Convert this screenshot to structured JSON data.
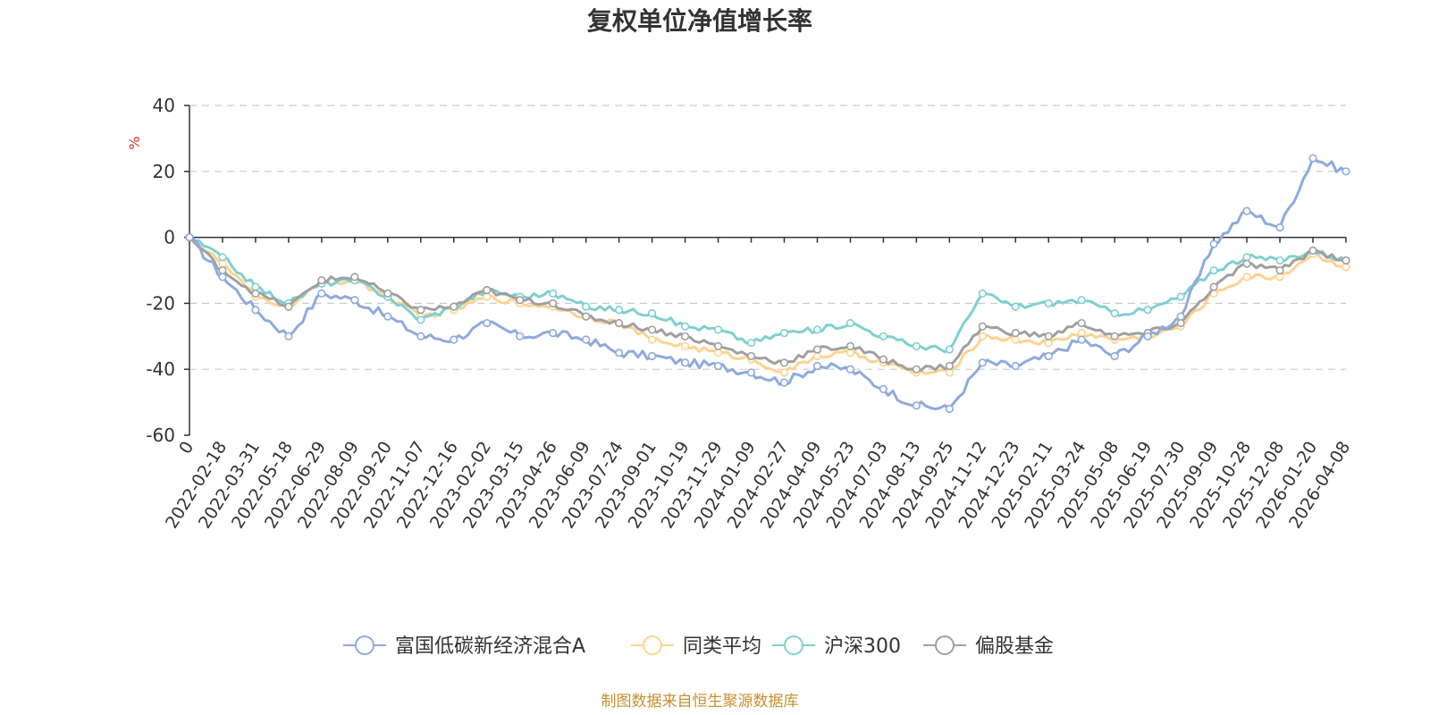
{
  "chart_data": {
    "type": "line",
    "title": "复权单位净值增长率",
    "ylabel": "%",
    "ylim": [
      -60,
      40
    ],
    "yticks": [
      40,
      20,
      0,
      -20,
      -40,
      -60
    ],
    "grid": true,
    "legend_position": "bottom",
    "categories": [
      "0",
      "2022-02-18",
      "2022-03-31",
      "2022-05-18",
      "2022-06-29",
      "2022-08-09",
      "2022-09-20",
      "2022-11-07",
      "2022-12-16",
      "2023-02-02",
      "2023-03-15",
      "2023-04-26",
      "2023-06-09",
      "2023-07-24",
      "2023-09-01",
      "2023-10-19",
      "2023-11-29",
      "2024-01-09",
      "2024-02-27",
      "2024-04-09",
      "2024-05-23",
      "2024-07-03",
      "2024-08-13",
      "2024-09-25",
      "2024-11-12",
      "2024-12-23",
      "2025-02-11",
      "2025-03-24",
      "2025-05-08",
      "2025-06-19",
      "2025-07-30",
      "2025-09-09",
      "2025-10-28",
      "2025-12-08",
      "2026-01-20",
      "2026-04-08"
    ],
    "series": [
      {
        "name": "富国低碳新经济混合A",
        "color": "#8faadc",
        "values": [
          0,
          -12,
          -22,
          -30,
          -17,
          -19,
          -24,
          -30,
          -31,
          -26,
          -30,
          -29,
          -31,
          -35,
          -36,
          -38,
          -39,
          -41,
          -44,
          -39,
          -40,
          -46,
          -51,
          -52,
          -38,
          -39,
          -36,
          -31,
          -36,
          -30,
          -24,
          -2,
          8,
          3,
          24,
          20
        ]
      },
      {
        "name": "同类平均",
        "color": "#ffd28f",
        "values": [
          0,
          -8,
          -18,
          -21,
          -14,
          -13,
          -18,
          -24,
          -22,
          -18,
          -20,
          -21,
          -24,
          -26,
          -31,
          -33,
          -35,
          -37,
          -41,
          -36,
          -35,
          -38,
          -41,
          -41,
          -30,
          -31,
          -32,
          -29,
          -31,
          -30,
          -27,
          -17,
          -12,
          -12,
          -5,
          -9
        ]
      },
      {
        "name": "沪深300",
        "color": "#7fd0d0",
        "values": [
          0,
          -6,
          -15,
          -20,
          -14,
          -13,
          -18,
          -25,
          -21,
          -16,
          -18,
          -17,
          -21,
          -22,
          -23,
          -27,
          -28,
          -32,
          -29,
          -28,
          -26,
          -30,
          -33,
          -34,
          -17,
          -21,
          -20,
          -19,
          -23,
          -22,
          -18,
          -10,
          -6,
          -7,
          -4,
          -7
        ]
      },
      {
        "name": "偏股基金",
        "color": "#a0a0a0",
        "values": [
          0,
          -10,
          -17,
          -21,
          -13,
          -12,
          -17,
          -22,
          -21,
          -16,
          -19,
          -20,
          -24,
          -26,
          -28,
          -30,
          -33,
          -36,
          -38,
          -34,
          -33,
          -37,
          -40,
          -39,
          -27,
          -29,
          -30,
          -26,
          -30,
          -29,
          -26,
          -15,
          -8,
          -10,
          -4,
          -7
        ]
      }
    ]
  },
  "source": "制图数据来自恒生聚源数据库",
  "colors": {
    "axis": "#333333",
    "grid": "#cccccc",
    "source": "#c8902e",
    "ylabel": "#e03030"
  }
}
